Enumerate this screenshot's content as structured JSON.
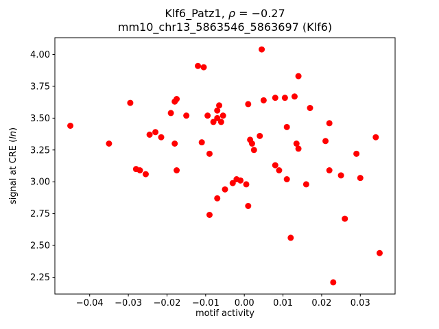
{
  "figure": {
    "title_line1_pre": "Klf6_Patz1, ",
    "title_rho": "ρ",
    "title_line1_post": " = −0.27",
    "title_line2": "mm10_chr13_5863546_5863697 (Klf6)",
    "xlabel": "motif activity",
    "ylabel_pre": "signal at CRE (",
    "ylabel_italic": "ln",
    "ylabel_post": ")"
  },
  "chart_data": {
    "type": "scatter",
    "title": "Klf6_Patz1, ρ = −0.27\nmm10_chr13_5863546_5863697 (Klf6)",
    "xlabel": "motif activity",
    "ylabel": "signal at CRE (ln)",
    "legend": "none",
    "grid": false,
    "marker_color": "#ff0000",
    "marker_radius": 4.5,
    "axis_color": "#000000",
    "xlim": [
      -0.049,
      0.039
    ],
    "ylim": [
      2.118,
      4.132
    ],
    "xticks": [
      -0.04,
      -0.03,
      -0.02,
      -0.01,
      0.0,
      0.01,
      0.02,
      0.03
    ],
    "yticks": [
      2.25,
      2.5,
      2.75,
      3.0,
      3.25,
      3.5,
      3.75,
      4.0
    ],
    "points": [
      [
        -0.045,
        3.44
      ],
      [
        -0.035,
        3.3
      ],
      [
        -0.0295,
        3.62
      ],
      [
        -0.028,
        3.1
      ],
      [
        -0.027,
        3.09
      ],
      [
        -0.0255,
        3.06
      ],
      [
        -0.0245,
        3.37
      ],
      [
        -0.023,
        3.39
      ],
      [
        -0.0215,
        3.35
      ],
      [
        -0.019,
        3.54
      ],
      [
        -0.018,
        3.63
      ],
      [
        -0.0175,
        3.65
      ],
      [
        -0.018,
        3.3
      ],
      [
        -0.0175,
        3.09
      ],
      [
        -0.015,
        3.52
      ],
      [
        -0.012,
        3.91
      ],
      [
        -0.0105,
        3.9
      ],
      [
        -0.011,
        3.31
      ],
      [
        -0.009,
        2.74
      ],
      [
        -0.0095,
        3.52
      ],
      [
        -0.009,
        3.22
      ],
      [
        -0.008,
        3.47
      ],
      [
        -0.007,
        3.56
      ],
      [
        -0.0065,
        3.6
      ],
      [
        -0.007,
        3.5
      ],
      [
        -0.006,
        3.47
      ],
      [
        -0.0055,
        3.52
      ],
      [
        -0.007,
        2.87
      ],
      [
        -0.005,
        2.94
      ],
      [
        -0.003,
        2.99
      ],
      [
        -0.002,
        3.02
      ],
      [
        -0.001,
        3.01
      ],
      [
        0.0005,
        2.98
      ],
      [
        0.001,
        3.61
      ],
      [
        0.0015,
        3.33
      ],
      [
        0.002,
        3.3
      ],
      [
        0.0025,
        3.25
      ],
      [
        0.001,
        2.81
      ],
      [
        0.0045,
        4.04
      ],
      [
        0.004,
        3.36
      ],
      [
        0.005,
        3.64
      ],
      [
        0.008,
        3.66
      ],
      [
        0.008,
        3.13
      ],
      [
        0.009,
        3.09
      ],
      [
        0.0105,
        3.66
      ],
      [
        0.011,
        3.43
      ],
      [
        0.011,
        3.02
      ],
      [
        0.012,
        2.56
      ],
      [
        0.013,
        3.67
      ],
      [
        0.014,
        3.83
      ],
      [
        0.0135,
        3.3
      ],
      [
        0.014,
        3.26
      ],
      [
        0.016,
        2.98
      ],
      [
        0.017,
        3.58
      ],
      [
        0.021,
        3.32
      ],
      [
        0.022,
        3.46
      ],
      [
        0.022,
        3.09
      ],
      [
        0.023,
        2.21
      ],
      [
        0.025,
        3.05
      ],
      [
        0.026,
        2.71
      ],
      [
        0.029,
        3.22
      ],
      [
        0.03,
        3.03
      ],
      [
        0.034,
        3.35
      ],
      [
        0.035,
        2.44
      ]
    ]
  }
}
